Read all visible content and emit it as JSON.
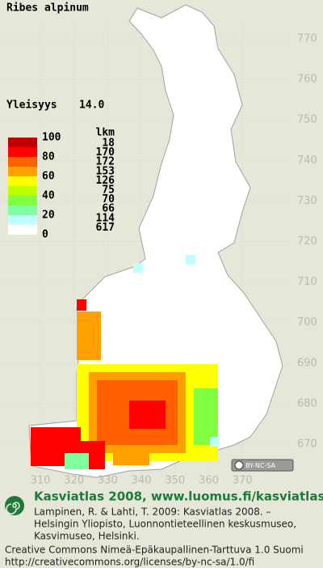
{
  "title": "Ribes alpinum",
  "frequency": {
    "label": "Yleisyys",
    "value": "14.0"
  },
  "legend": {
    "count_header": "lkm",
    "scale_labels": [
      "100",
      "80",
      "60",
      "40",
      "20",
      "0"
    ],
    "classes": [
      {
        "color": "#c00000",
        "count": 18
      },
      {
        "color": "#ff0000",
        "count": 170
      },
      {
        "color": "#ff6000",
        "count": 172
      },
      {
        "color": "#ffa000",
        "count": 153
      },
      {
        "color": "#ffff00",
        "count": 126
      },
      {
        "color": "#c0ff00",
        "count": 75
      },
      {
        "color": "#80ff40",
        "count": 70
      },
      {
        "color": "#80ffa0",
        "count": 66
      },
      {
        "color": "#c0ffff",
        "count": 114
      },
      {
        "color": "#ffffff",
        "count": 617
      }
    ]
  },
  "grid": {
    "northing": [
      770,
      760,
      750,
      740,
      730,
      720,
      710,
      700,
      690,
      680,
      670
    ],
    "easting": [
      310,
      320,
      330,
      340,
      350,
      360,
      370
    ]
  },
  "badge": "BY-NC-SA",
  "footer": {
    "heading": "Kasviatlas 2008, www.luomus.fi/kasviatlas",
    "citation": [
      "Lampinen, R. & Lahti, T. 2009: Kasviatlas 2008. –",
      "Helsingin Yliopisto, Luonnontieteellinen keskusmuseo,",
      "Kasvimuseo, Helsinki."
    ],
    "license": [
      "Creative Commons Nimeä-Epäkaupallinen-Tarttuva 1.0 Suomi",
      "http://creativecommons.org/licenses/by-nc-sa/1.0/fi"
    ]
  }
}
